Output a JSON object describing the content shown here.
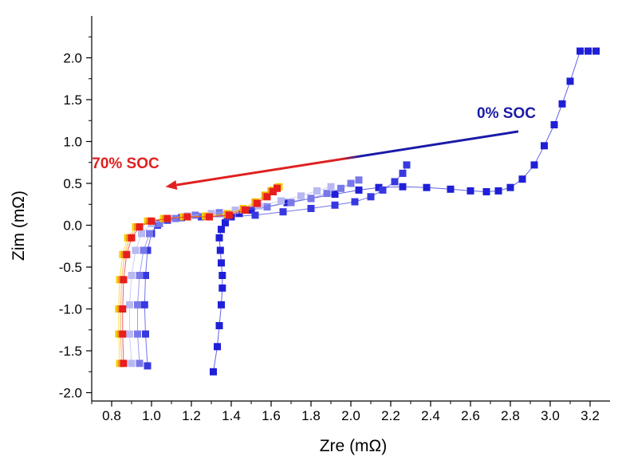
{
  "chart_data": {
    "type": "scatter",
    "title": "",
    "xlabel": "Zre (mΩ)",
    "ylabel": "Zim (mΩ)",
    "xlim": [
      0.7,
      3.3
    ],
    "ylim": [
      -2.1,
      2.5
    ],
    "xticks": [
      "0.8",
      "1.0",
      "1.2",
      "1.4",
      "1.6",
      "1.8",
      "2.0",
      "2.2",
      "2.4",
      "2.6",
      "2.8",
      "3.0",
      "3.2"
    ],
    "yticks": [
      "-2.0",
      "-1.5",
      "-1.0",
      "-0.5",
      "0.0",
      "0.5",
      "1.0",
      "1.5",
      "2.0"
    ],
    "grid": false,
    "marker": "square",
    "annotations": [
      {
        "text": "0% SOC",
        "color": "#1a1aa8",
        "x": 2.78,
        "y": 1.28
      },
      {
        "text": "70% SOC",
        "color": "#e02020",
        "x": 0.87,
        "y": 0.68
      },
      {
        "type": "arrow",
        "from": [
          2.84,
          1.12
        ],
        "to": [
          1.07,
          0.46
        ],
        "color_start": "#1a1aa8",
        "color_end": "#e02020"
      }
    ],
    "series": [
      {
        "color": "#1f1fd8",
        "x": [
          1.31,
          1.33,
          1.34,
          1.35,
          1.355,
          1.355,
          1.35,
          1.345,
          1.34,
          1.35,
          1.37,
          1.4,
          1.44,
          1.5,
          1.58,
          1.68,
          1.8,
          1.92,
          2.04,
          2.14,
          2.26,
          2.38,
          2.5,
          2.6,
          2.68,
          2.74,
          2.8,
          2.86,
          2.92,
          2.97,
          3.02,
          3.06,
          3.1,
          3.15,
          3.19,
          3.23
        ],
        "y": [
          -1.75,
          -1.45,
          -1.2,
          -0.95,
          -0.75,
          -0.6,
          -0.45,
          -0.3,
          -0.15,
          -0.05,
          0.03,
          0.1,
          0.14,
          0.18,
          0.22,
          0.27,
          0.32,
          0.37,
          0.42,
          0.45,
          0.46,
          0.45,
          0.43,
          0.41,
          0.4,
          0.41,
          0.45,
          0.55,
          0.72,
          0.95,
          1.2,
          1.45,
          1.72,
          2.08,
          2.08,
          2.08
        ]
      },
      {
        "color": "#3838e0",
        "x": [
          0.98,
          0.97,
          0.965,
          0.97,
          0.98,
          1.0,
          1.03,
          1.08,
          1.15,
          1.25,
          1.38,
          1.52,
          1.66,
          1.8,
          1.92,
          2.02,
          2.1,
          2.16,
          2.22,
          2.26,
          2.28
        ],
        "y": [
          -1.68,
          -1.3,
          -0.95,
          -0.6,
          -0.3,
          -0.1,
          0.0,
          0.06,
          0.09,
          0.1,
          0.1,
          0.12,
          0.16,
          0.2,
          0.24,
          0.28,
          0.34,
          0.42,
          0.52,
          0.62,
          0.72
        ]
      },
      {
        "color": "#7878ea",
        "x": [
          0.94,
          0.93,
          0.93,
          0.94,
          0.96,
          0.99,
          1.04,
          1.12,
          1.22,
          1.34,
          1.46,
          1.58,
          1.7,
          1.8,
          1.88,
          1.95,
          2.0,
          2.04
        ],
        "y": [
          -1.65,
          -1.3,
          -0.95,
          -0.6,
          -0.3,
          -0.1,
          0.02,
          0.08,
          0.12,
          0.15,
          0.18,
          0.22,
          0.27,
          0.32,
          0.38,
          0.44,
          0.5,
          0.54
        ]
      },
      {
        "color": "#b8b8f2",
        "x": [
          0.9,
          0.89,
          0.89,
          0.9,
          0.92,
          0.95,
          1.0,
          1.08,
          1.18,
          1.3,
          1.42,
          1.54,
          1.65,
          1.75,
          1.83,
          1.9
        ],
        "y": [
          -1.65,
          -1.3,
          -0.95,
          -0.6,
          -0.3,
          -0.1,
          0.02,
          0.08,
          0.11,
          0.14,
          0.18,
          0.23,
          0.29,
          0.35,
          0.41,
          0.46
        ]
      },
      {
        "color": "#f2d400",
        "x": [
          0.84,
          0.835,
          0.835,
          0.84,
          0.855,
          0.88,
          0.92,
          0.98,
          1.06,
          1.16,
          1.27,
          1.38,
          1.46,
          1.52,
          1.57,
          1.61,
          1.64
        ],
        "y": [
          -1.65,
          -1.3,
          -1.0,
          -0.65,
          -0.35,
          -0.15,
          -0.02,
          0.05,
          0.08,
          0.1,
          0.11,
          0.14,
          0.2,
          0.28,
          0.36,
          0.42,
          0.46
        ]
      },
      {
        "color": "#f39a1a",
        "x": [
          0.85,
          0.845,
          0.845,
          0.85,
          0.865,
          0.89,
          0.93,
          0.99,
          1.07,
          1.17,
          1.28,
          1.38,
          1.46,
          1.52,
          1.57,
          1.6,
          1.63
        ],
        "y": [
          -1.65,
          -1.3,
          -1.0,
          -0.65,
          -0.35,
          -0.15,
          -0.02,
          0.05,
          0.08,
          0.1,
          0.1,
          0.13,
          0.19,
          0.27,
          0.35,
          0.41,
          0.45
        ]
      },
      {
        "color": "#e81e1e",
        "x": [
          0.86,
          0.855,
          0.855,
          0.86,
          0.875,
          0.9,
          0.94,
          1.0,
          1.08,
          1.18,
          1.29,
          1.39,
          1.47,
          1.53,
          1.58,
          1.61,
          1.63
        ],
        "y": [
          -1.65,
          -1.3,
          -1.0,
          -0.65,
          -0.35,
          -0.15,
          -0.02,
          0.05,
          0.08,
          0.1,
          0.1,
          0.12,
          0.18,
          0.26,
          0.34,
          0.4,
          0.44
        ]
      }
    ]
  }
}
